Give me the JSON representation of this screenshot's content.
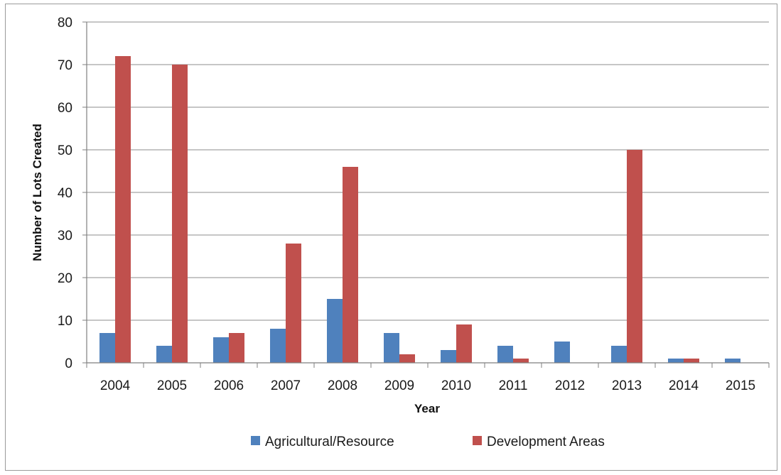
{
  "chart_data": {
    "type": "bar",
    "title": "",
    "xlabel": "Year",
    "ylabel": "Number of Lots Created",
    "ylim": [
      0,
      80
    ],
    "yticks": [
      0,
      10,
      20,
      30,
      40,
      50,
      60,
      70,
      80
    ],
    "grid": true,
    "legend_position": "bottom",
    "categories": [
      "2004",
      "2005",
      "2006",
      "2007",
      "2008",
      "2009",
      "2010",
      "2011",
      "2012",
      "2013",
      "2014",
      "2015"
    ],
    "series": [
      {
        "name": "Agricultural/Resource",
        "color": "#4f81bd",
        "values": [
          7,
          4,
          6,
          8,
          15,
          7,
          3,
          4,
          5,
          4,
          1,
          1
        ]
      },
      {
        "name": "Development Areas",
        "color": "#c0504d",
        "values": [
          72,
          70,
          7,
          28,
          46,
          2,
          9,
          1,
          0,
          50,
          1,
          0
        ]
      }
    ]
  }
}
